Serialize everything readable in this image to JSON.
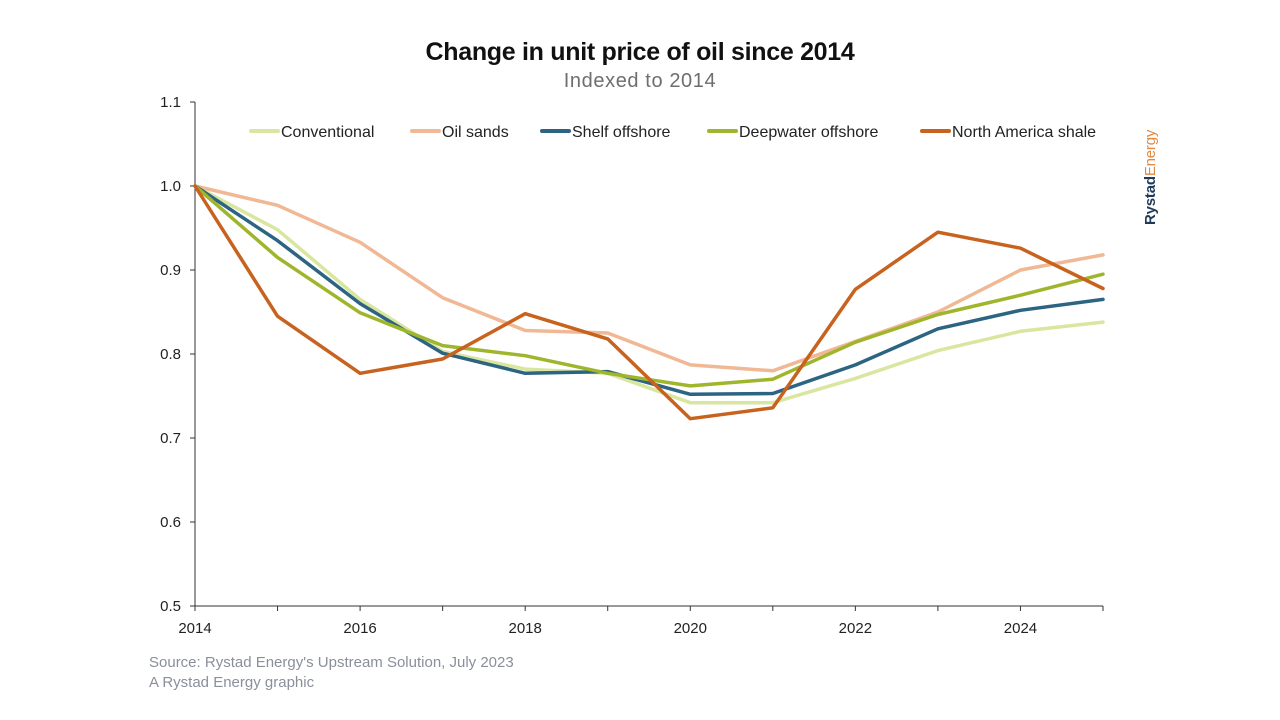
{
  "title": "Change in unit price of oil since 2014",
  "subtitle": "Indexed to 2014",
  "source_line1": "Source: Rystad Energy's Upstream Solution, July 2023",
  "source_line2": "A Rystad Energy graphic",
  "brand": {
    "part1": "Rystad",
    "part2": "Energy"
  },
  "chart_data": {
    "type": "line",
    "x": [
      2014,
      2015,
      2016,
      2017,
      2018,
      2019,
      2020,
      2021,
      2022,
      2023,
      2024,
      2025
    ],
    "xlim": [
      2014,
      2025
    ],
    "xticks": [
      "2014",
      "2016",
      "2018",
      "2020",
      "2022",
      "2024"
    ],
    "ylim": [
      0.5,
      1.1
    ],
    "yticks": [
      "0.5",
      "0.6",
      "0.7",
      "0.8",
      "0.9",
      "1.0",
      "1.1"
    ],
    "legend_position": "top",
    "grid": false,
    "series": [
      {
        "name": "Conventional",
        "color": "#d9e6a0",
        "values": [
          1.0,
          0.948,
          0.865,
          0.803,
          0.782,
          0.777,
          0.742,
          0.742,
          0.771,
          0.804,
          0.827,
          0.838
        ]
      },
      {
        "name": "Oil sands",
        "color": "#f0b894",
        "values": [
          1.0,
          0.977,
          0.933,
          0.867,
          0.828,
          0.825,
          0.787,
          0.78,
          0.815,
          0.85,
          0.9,
          0.918
        ]
      },
      {
        "name": "Shelf offshore",
        "color": "#2c6482",
        "values": [
          1.0,
          0.935,
          0.86,
          0.801,
          0.777,
          0.779,
          0.752,
          0.753,
          0.787,
          0.83,
          0.852,
          0.865
        ]
      },
      {
        "name": "Deepwater offshore",
        "color": "#9fb52c",
        "values": [
          1.0,
          0.915,
          0.849,
          0.81,
          0.798,
          0.777,
          0.762,
          0.77,
          0.814,
          0.847,
          0.87,
          0.895
        ]
      },
      {
        "name": "North America shale",
        "color": "#c8621f",
        "values": [
          1.0,
          0.845,
          0.777,
          0.794,
          0.848,
          0.818,
          0.723,
          0.736,
          0.877,
          0.945,
          0.926,
          0.878
        ]
      }
    ]
  }
}
